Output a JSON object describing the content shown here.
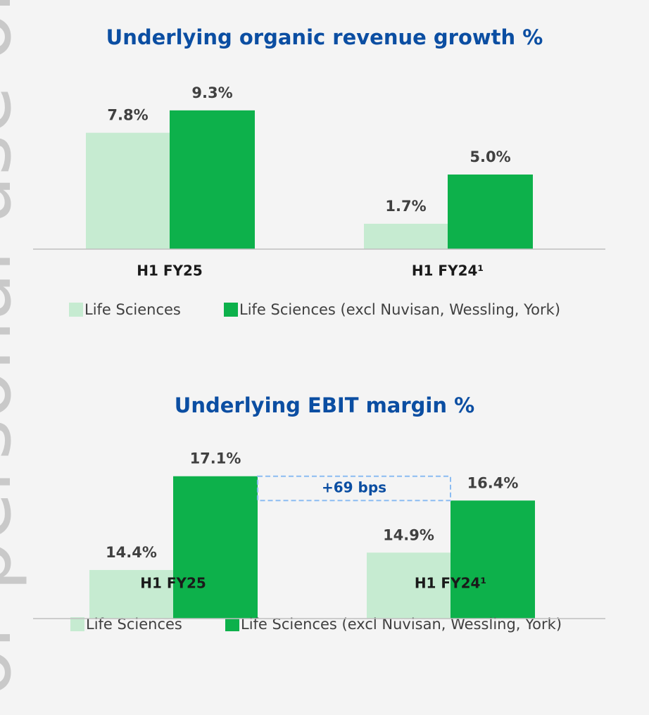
{
  "watermark": "For personal use only",
  "chart_data": [
    {
      "type": "bar",
      "title": "Underlying organic revenue growth %",
      "categories": [
        "H1 FY25",
        "H1 FY24¹"
      ],
      "series": [
        {
          "name": "Life Sciences",
          "color": "#c6ebd1",
          "values": [
            7.8,
            1.7
          ],
          "value_labels": [
            "7.8%",
            "1.7%"
          ]
        },
        {
          "name": "Life Sciences (excl Nuvisan, Wessling, York)",
          "color": "#0db14b",
          "values": [
            9.3,
            5.0
          ],
          "value_labels": [
            "9.3%",
            "5.0%"
          ]
        }
      ],
      "ylim": [
        0,
        10
      ]
    },
    {
      "type": "bar",
      "title": "Underlying EBIT margin %",
      "categories": [
        "H1 FY25",
        "H1 FY24¹"
      ],
      "series": [
        {
          "name": "Life Sciences",
          "color": "#c6ebd1",
          "values": [
            14.4,
            14.9
          ],
          "value_labels": [
            "14.4%",
            "14.9%"
          ]
        },
        {
          "name": "Life Sciences (excl Nuvisan, Wessling, York)",
          "color": "#0db14b",
          "values": [
            17.1,
            16.4
          ],
          "value_labels": [
            "17.1%",
            "16.4%"
          ]
        }
      ],
      "ylim": [
        13,
        17.5
      ],
      "annotations": [
        {
          "text": "+69 bps"
        }
      ]
    }
  ]
}
